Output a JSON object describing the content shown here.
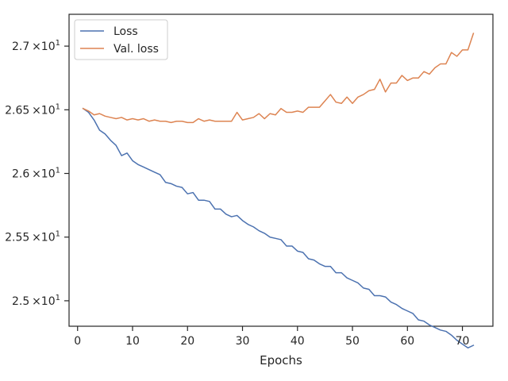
{
  "chart_data": {
    "type": "line",
    "title": "",
    "xlabel": "Epochs",
    "ylabel": "",
    "xlim": [
      -1.55,
      75.55
    ],
    "ylim": [
      24.8,
      27.25
    ],
    "grid": false,
    "legend_position": "top-left",
    "x_ticks": [
      0,
      10,
      20,
      30,
      40,
      50,
      60,
      70
    ],
    "y_ticks": [
      {
        "value": 25.0,
        "mantissa": "2.5",
        "exponent": "1"
      },
      {
        "value": 25.5,
        "mantissa": "2.55",
        "exponent": "1"
      },
      {
        "value": 26.0,
        "mantissa": "2.6",
        "exponent": "1"
      },
      {
        "value": 26.5,
        "mantissa": "2.65",
        "exponent": "1"
      },
      {
        "value": 27.0,
        "mantissa": "2.7",
        "exponent": "1"
      }
    ],
    "y_tick_times": "×10",
    "series": [
      {
        "name": "Loss",
        "color": "#4c72b0",
        "x": [
          1,
          2,
          3,
          4,
          5,
          6,
          7,
          8,
          9,
          10,
          11,
          12,
          13,
          14,
          15,
          16,
          17,
          18,
          19,
          20,
          21,
          22,
          23,
          24,
          25,
          26,
          27,
          28,
          29,
          30,
          31,
          32,
          33,
          34,
          35,
          36,
          37,
          38,
          39,
          40,
          41,
          42,
          43,
          44,
          45,
          46,
          47,
          48,
          49,
          50,
          51,
          52,
          53,
          54,
          55,
          56,
          57,
          58,
          59,
          60,
          61,
          62,
          63,
          64,
          65,
          66,
          67,
          68,
          69,
          70,
          71,
          72
        ],
        "y": [
          26.51,
          26.48,
          26.42,
          26.34,
          26.31,
          26.26,
          26.22,
          26.14,
          26.16,
          26.1,
          26.07,
          26.05,
          26.03,
          26.01,
          25.99,
          25.93,
          25.92,
          25.9,
          25.89,
          25.84,
          25.85,
          25.79,
          25.79,
          25.78,
          25.72,
          25.72,
          25.68,
          25.66,
          25.67,
          25.63,
          25.6,
          25.58,
          25.55,
          25.53,
          25.5,
          25.49,
          25.48,
          25.43,
          25.43,
          25.39,
          25.38,
          25.33,
          25.32,
          25.29,
          25.27,
          25.27,
          25.22,
          25.22,
          25.18,
          25.16,
          25.14,
          25.1,
          25.09,
          25.04,
          25.04,
          25.03,
          24.99,
          24.97,
          24.94,
          24.92,
          24.9,
          24.85,
          24.84,
          24.81,
          24.79,
          24.77,
          24.76,
          24.73,
          24.69,
          24.66,
          24.63,
          24.65
        ]
      },
      {
        "name": "Val. loss",
        "color": "#dd8452",
        "x": [
          1,
          2,
          3,
          4,
          5,
          6,
          7,
          8,
          9,
          10,
          11,
          12,
          13,
          14,
          15,
          16,
          17,
          18,
          19,
          20,
          21,
          22,
          23,
          24,
          25,
          26,
          27,
          28,
          29,
          30,
          31,
          32,
          33,
          34,
          35,
          36,
          37,
          38,
          39,
          40,
          41,
          42,
          43,
          44,
          45,
          46,
          47,
          48,
          49,
          50,
          51,
          52,
          53,
          54,
          55,
          56,
          57,
          58,
          59,
          60,
          61,
          62,
          63,
          64,
          65,
          66,
          67,
          68,
          69,
          70,
          71,
          72
        ],
        "y": [
          26.51,
          26.49,
          26.46,
          26.47,
          26.45,
          26.44,
          26.43,
          26.44,
          26.42,
          26.43,
          26.42,
          26.43,
          26.41,
          26.42,
          26.41,
          26.41,
          26.4,
          26.41,
          26.41,
          26.4,
          26.4,
          26.43,
          26.41,
          26.42,
          26.41,
          26.41,
          26.41,
          26.41,
          26.48,
          26.42,
          26.43,
          26.44,
          26.47,
          26.43,
          26.47,
          26.46,
          26.51,
          26.48,
          26.48,
          26.49,
          26.48,
          26.52,
          26.52,
          26.52,
          26.57,
          26.62,
          26.56,
          26.55,
          26.6,
          26.55,
          26.6,
          26.62,
          26.65,
          26.66,
          26.74,
          26.64,
          26.71,
          26.71,
          26.77,
          26.73,
          26.75,
          26.75,
          26.8,
          26.78,
          26.83,
          26.86,
          26.86,
          26.95,
          26.92,
          26.97,
          26.97,
          27.1
        ]
      }
    ]
  }
}
